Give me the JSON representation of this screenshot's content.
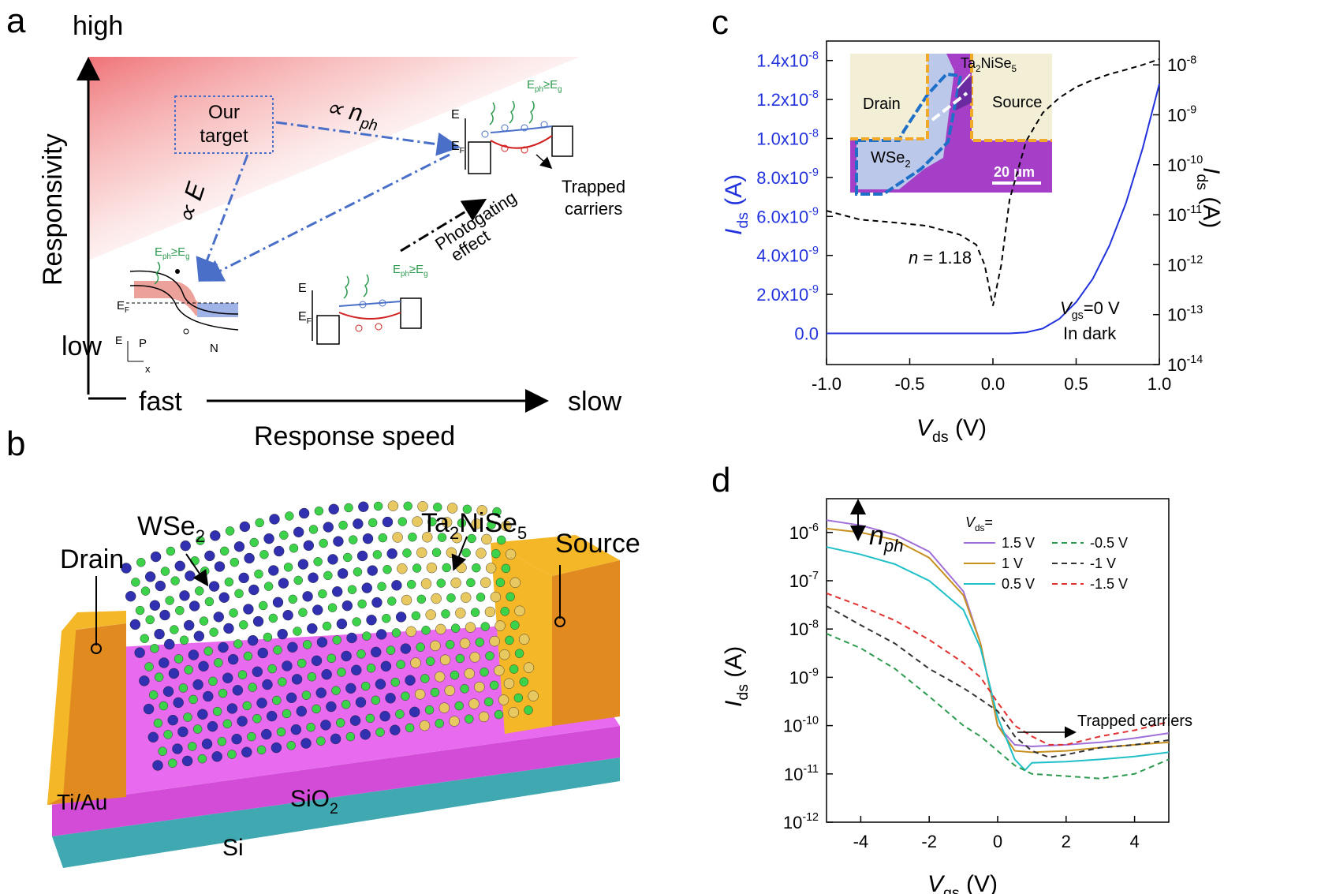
{
  "panels": {
    "a": "a",
    "b": "b",
    "c": "c",
    "d": "d"
  },
  "panel_a": {
    "high": "high",
    "low": "low",
    "fast": "fast",
    "slow": "slow",
    "ylabel": "Responsivity",
    "xlabel": "Response speed",
    "our_target_line1": "Our",
    "our_target_line2": "target",
    "prop_nph": "∝ n",
    "prop_nph_sub": "ph",
    "prop_E": "∝ E",
    "photogating_1": "Photogating",
    "photogating_2": "effect",
    "trapped_1": "Trapped",
    "trapped_2": "carriers",
    "eph": "E",
    "eph_sub": "ph",
    "eph_ge": "≥E",
    "eph_g": "g",
    "E": "E",
    "EF": "E",
    "EF_sub": "F",
    "P": "P",
    "N": "N",
    "x": "x"
  },
  "panel_b": {
    "drain": "Drain",
    "source": "Source",
    "wse2": "WSe",
    "wse2_sub": "2",
    "tnse_1": "Ta",
    "tnse_s1": "2",
    "tnse_2": "NiSe",
    "tnse_s2": "5",
    "tiau": "Ti/Au",
    "sio2": "SiO",
    "sio2_sub": "2",
    "si": "Si",
    "colors": {
      "gold": "#F4B727",
      "sio2": "#E050E8",
      "si": "#3FA8B0",
      "w_atom": "#3030B0",
      "se_atom": "#3CD34A",
      "ta_atom": "#E8C860"
    }
  },
  "panel_c": {
    "ylabel_I": "I",
    "ylabel_sub": "ds",
    "ylabel_unit": " (A)",
    "xlabel_V": "V",
    "xlabel_sub": "ds",
    "xlabel_unit": " (V)",
    "inset_drain": "Drain",
    "inset_source": "Source",
    "inset_wse2": "WSe",
    "inset_wse2_sub": "2",
    "inset_tnse": "Ta",
    "inset_tnse_s1": "2",
    "inset_tnse_2": "NiSe",
    "inset_tnse_s2": "5",
    "scale_bar": "20 μm",
    "n_label": "n",
    "n_value": " = 1.18",
    "vgs_label": "V",
    "vgs_sub": "gs",
    "vgs_value": "=0 V",
    "in_dark": "In dark",
    "left_ticks": [
      "0.0",
      "2.0x10",
      "4.0x10",
      "6.0x10",
      "8.0x10",
      "1.0x10",
      "1.2x10",
      "1.4x10"
    ],
    "left_tick_exp": "-9",
    "left_tick_exp8": "-8",
    "x_ticks": [
      "-1.0",
      "-0.5",
      "0.0",
      "0.5",
      "1.0"
    ],
    "right_ticks_base": "10",
    "right_ticks_exp": [
      "-14",
      "-13",
      "-12",
      "-11",
      "-10",
      "-9",
      "-8"
    ],
    "colors": {
      "linear": "#2233DD",
      "log": "#000000",
      "left_axis": "#2233DD"
    }
  },
  "chart_data": [
    {
      "type": "line",
      "panel": "c",
      "xlabel": "V_ds (V)",
      "ylabel": "I_ds (A)",
      "y2label": "I_ds (A)",
      "xlim": [
        -1.0,
        1.0
      ],
      "ylim": [
        -1.6e-09,
        1.5e-08
      ],
      "y2lim": [
        1e-14,
        3e-08
      ],
      "y2scale": "log",
      "series": [
        {
          "axis": "left",
          "style": "solid",
          "color": "#2233DD",
          "x": [
            -1.0,
            -0.5,
            0.0,
            0.1,
            0.2,
            0.3,
            0.4,
            0.5,
            0.6,
            0.7,
            0.8,
            0.9,
            1.0
          ],
          "y": [
            0,
            0,
            0,
            0,
            5e-11,
            2.5e-10,
            7.5e-10,
            1.6e-09,
            2.8e-09,
            4.5e-09,
            6.7e-09,
            9.5e-09,
            1.28e-08
          ]
        },
        {
          "axis": "right",
          "style": "dashed",
          "color": "#000000",
          "x": [
            -1.0,
            -0.8,
            -0.6,
            -0.4,
            -0.2,
            -0.1,
            -0.05,
            0.0,
            0.05,
            0.1,
            0.2,
            0.3,
            0.4,
            0.5,
            0.6,
            0.7,
            0.8,
            0.9,
            1.0
          ],
          "y": [
            1.2e-11,
            8e-12,
            7e-12,
            6e-12,
            4e-12,
            2.5e-12,
            1e-12,
            1.5e-13,
            1e-12,
            2e-11,
            3e-10,
            1.1e-09,
            2.2e-09,
            3.6e-09,
            5e-09,
            6.5e-09,
            8e-09,
            1e-08,
            1.3e-08
          ]
        }
      ]
    },
    {
      "type": "line",
      "panel": "d",
      "xlabel": "V_gs (V)",
      "ylabel": "I_ds (A)",
      "xlim": [
        -5,
        5
      ],
      "ylim": [
        1e-12,
        5e-06
      ],
      "yscale": "log",
      "legend_title": "V_ds=",
      "series": [
        {
          "name": "1.5 V",
          "color": "#A070D8",
          "style": "solid",
          "x": [
            -5,
            -4,
            -3,
            -2,
            -1,
            -0.5,
            0,
            0.5,
            1,
            2,
            3,
            4,
            5
          ],
          "y": [
            1.8e-06,
            1.4e-06,
            9e-07,
            4e-07,
            6e-08,
            5e-09,
            1e-10,
            4e-11,
            3.7e-11,
            4e-11,
            4.5e-11,
            5.5e-11,
            7e-11
          ]
        },
        {
          "name": "1 V",
          "color": "#C89020",
          "style": "solid",
          "x": [
            -5,
            -4,
            -3,
            -2,
            -1,
            -0.5,
            0,
            0.5,
            1,
            2,
            3,
            4,
            5
          ],
          "y": [
            1.2e-06,
            1e-06,
            7e-07,
            3e-07,
            5e-08,
            5e-09,
            1e-10,
            3e-11,
            2.8e-11,
            3e-11,
            3.5e-11,
            4e-11,
            4.5e-11
          ]
        },
        {
          "name": "0.5 V",
          "color": "#20C0C8",
          "style": "solid",
          "x": [
            -5,
            -4,
            -3,
            -2,
            -1,
            -0.5,
            0,
            0.5,
            0.8,
            1,
            2,
            3,
            4,
            5
          ],
          "y": [
            5e-07,
            3.5e-07,
            2.2e-07,
            1e-07,
            2.5e-08,
            4e-09,
            1.5e-10,
            2e-11,
            1.2e-11,
            1.7e-11,
            1.8e-11,
            2e-11,
            2.3e-11,
            2.8e-11
          ]
        },
        {
          "name": "-0.5 V",
          "color": "#2E9A50",
          "style": "dashed",
          "x": [
            -5,
            -4,
            -3,
            -2,
            -1,
            -0.5,
            0,
            0.5,
            1,
            2,
            3,
            4,
            5
          ],
          "y": [
            8e-09,
            4e-09,
            1.5e-09,
            4e-10,
            1e-10,
            6e-11,
            3e-11,
            1.5e-11,
            1e-11,
            9e-12,
            8e-12,
            1e-11,
            2e-11
          ]
        },
        {
          "name": "-1 V",
          "color": "#333333",
          "style": "dashed",
          "x": [
            -5,
            -4,
            -3,
            -2,
            -1,
            -0.5,
            0,
            0.5,
            1,
            1.5,
            2,
            3,
            4,
            5
          ],
          "y": [
            3e-08,
            1.2e-08,
            5e-09,
            1.5e-09,
            6e-10,
            3.5e-10,
            2e-10,
            6e-11,
            3e-11,
            2.2e-11,
            2.5e-11,
            3.5e-11,
            4e-11,
            5e-11
          ]
        },
        {
          "name": "-1.5 V",
          "color": "#E03030",
          "style": "dashed",
          "x": [
            -5,
            -4,
            -3,
            -2,
            -1,
            -0.5,
            0,
            0.5,
            1,
            1.5,
            2,
            3,
            4,
            5
          ],
          "y": [
            5.5e-08,
            3e-08,
            1.5e-08,
            6e-09,
            2e-09,
            1e-09,
            3e-10,
            1e-10,
            6e-11,
            4e-11,
            4e-11,
            6e-11,
            8e-11,
            1.2e-10
          ]
        }
      ],
      "annotations": [
        "Trapped carriers",
        "n_ph"
      ]
    }
  ],
  "panel_d": {
    "ylabel_I": "I",
    "ylabel_sub": "ds",
    "ylabel_unit": " (A)",
    "xlabel_V": "V",
    "xlabel_sub": "gs",
    "xlabel_unit": " (V)",
    "legend_V": "V",
    "legend_sub": "ds",
    "legend_eq": "=",
    "trapped": "Trapped carriers",
    "nph": "n",
    "nph_sub": "ph",
    "x_ticks": [
      "-4",
      "-2",
      "0",
      "2",
      "4"
    ],
    "y_base": "10",
    "y_exps": [
      "-12",
      "-11",
      "-10",
      "-9",
      "-8",
      "-7",
      "-6"
    ]
  }
}
